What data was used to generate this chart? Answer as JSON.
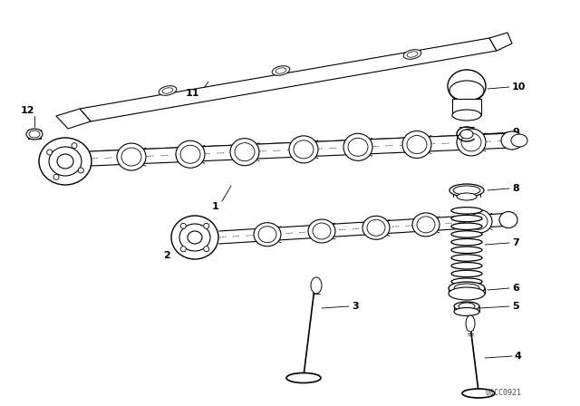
{
  "bg_color": "#ffffff",
  "line_color": "#000000",
  "watermark": "00CC0921",
  "fig_width": 6.4,
  "fig_height": 4.48,
  "dpi": 100,
  "lw": 0.7
}
